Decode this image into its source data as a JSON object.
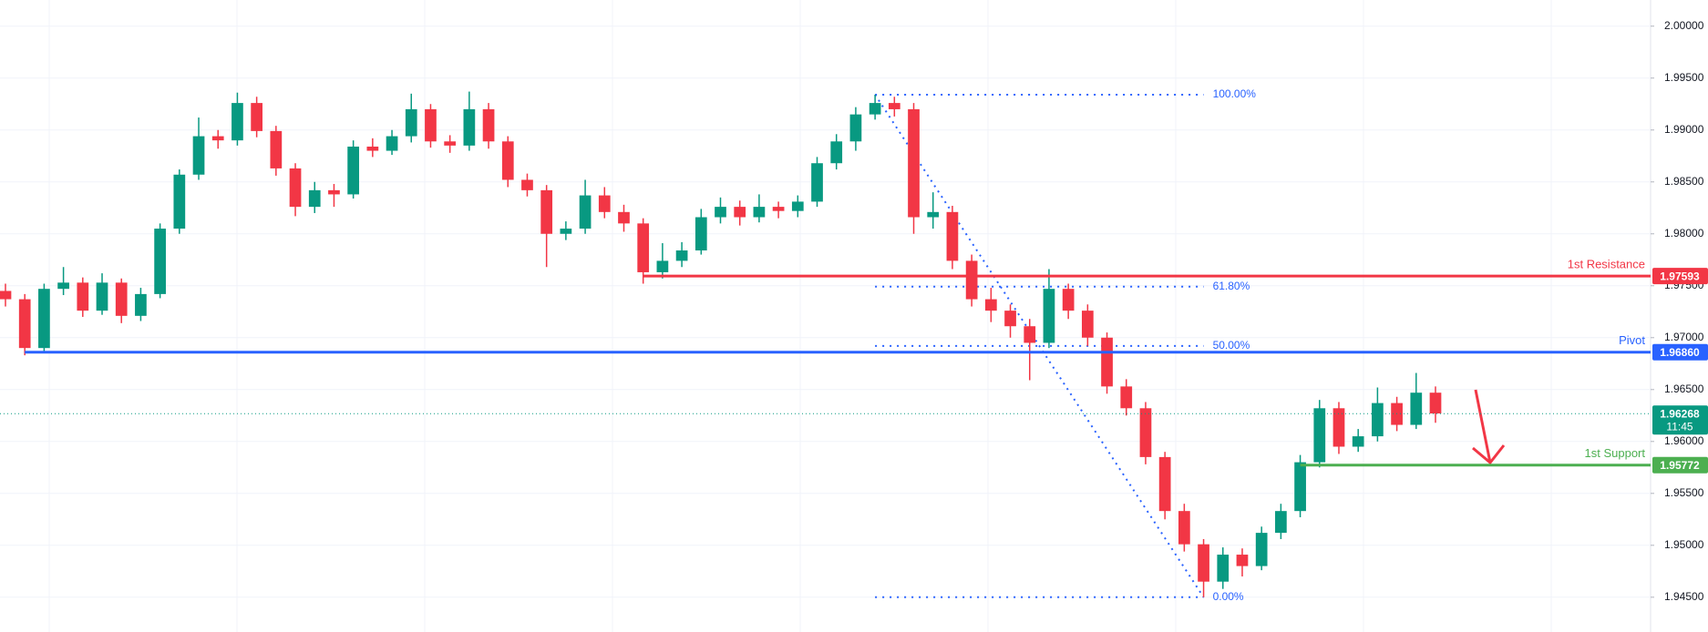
{
  "chart_data": {
    "type": "candlestick",
    "up_color": "#089981",
    "down_color": "#f23645",
    "open": [
      1.9745,
      1.9737,
      1.969,
      1.9747,
      1.9753,
      1.9726,
      1.9753,
      1.9721,
      1.9742,
      1.9805,
      1.9857,
      1.9894,
      1.989,
      1.9926,
      1.9899,
      1.9863,
      1.9826,
      1.9842,
      1.9838,
      1.9884,
      1.988,
      1.9894,
      1.992,
      1.9889,
      1.9885,
      1.992,
      1.9889,
      1.9852,
      1.9842,
      1.98,
      1.9805,
      1.9837,
      1.9821,
      1.981,
      1.9763,
      1.9774,
      1.9784,
      1.9816,
      1.9826,
      1.9816,
      1.9826,
      1.9822,
      1.9831,
      1.9868,
      1.9889,
      1.9915,
      1.9926,
      1.992,
      1.9816,
      1.9821,
      1.9774,
      1.9737,
      1.9726,
      1.9711,
      1.9695,
      1.9747,
      1.9726,
      1.97,
      1.9653,
      1.9632,
      1.9585,
      1.9533,
      1.9501,
      1.9465,
      1.9491,
      1.948,
      1.9512,
      1.9533,
      1.958,
      1.9632,
      1.9595,
      1.9605,
      1.9637,
      1.9616,
      1.9647
    ],
    "high": [
      1.9752,
      1.9742,
      1.9752,
      1.9768,
      1.9758,
      1.9762,
      1.9757,
      1.9748,
      1.981,
      1.9862,
      1.9912,
      1.99,
      1.9936,
      1.9932,
      1.9904,
      1.9868,
      1.985,
      1.9848,
      1.989,
      1.9892,
      1.99,
      1.9935,
      1.9925,
      1.9895,
      1.9937,
      1.9926,
      1.9894,
      1.9858,
      1.9847,
      1.9812,
      1.9852,
      1.9845,
      1.9828,
      1.9815,
      1.9791,
      1.9792,
      1.9824,
      1.9835,
      1.9832,
      1.9838,
      1.9831,
      1.9837,
      1.9874,
      1.9896,
      1.9922,
      1.9934,
      1.9932,
      1.9926,
      1.984,
      1.9827,
      1.978,
      1.9748,
      1.9732,
      1.9718,
      1.9766,
      1.9752,
      1.9732,
      1.9705,
      1.966,
      1.9638,
      1.959,
      1.954,
      1.9506,
      1.9498,
      1.9497,
      1.9518,
      1.954,
      1.9587,
      1.964,
      1.9638,
      1.9612,
      1.9652,
      1.9643,
      1.9666,
      1.9653
    ],
    "low": [
      1.973,
      1.9683,
      1.9686,
      1.9741,
      1.972,
      1.9722,
      1.9714,
      1.9716,
      1.9738,
      1.98,
      1.9852,
      1.9882,
      1.9885,
      1.9893,
      1.9856,
      1.9817,
      1.982,
      1.9826,
      1.9834,
      1.9874,
      1.9876,
      1.9888,
      1.9883,
      1.9878,
      1.988,
      1.9882,
      1.9845,
      1.9836,
      1.9768,
      1.9794,
      1.98,
      1.9815,
      1.9802,
      1.9752,
      1.9757,
      1.9768,
      1.978,
      1.981,
      1.9808,
      1.9811,
      1.9815,
      1.9816,
      1.9826,
      1.9862,
      1.988,
      1.991,
      1.9913,
      1.98,
      1.9805,
      1.9766,
      1.973,
      1.9715,
      1.97,
      1.9659,
      1.969,
      1.9718,
      1.9692,
      1.9646,
      1.9625,
      1.9578,
      1.9525,
      1.9494,
      1.945,
      1.9458,
      1.947,
      1.9476,
      1.9506,
      1.9527,
      1.9575,
      1.9588,
      1.959,
      1.96,
      1.961,
      1.9612,
      1.9618
    ],
    "close": [
      1.9737,
      1.969,
      1.9747,
      1.9753,
      1.9726,
      1.9753,
      1.9721,
      1.9742,
      1.9805,
      1.9857,
      1.9894,
      1.989,
      1.9926,
      1.9899,
      1.9863,
      1.9826,
      1.9842,
      1.9838,
      1.9884,
      1.988,
      1.9894,
      1.992,
      1.9889,
      1.9885,
      1.992,
      1.9889,
      1.9852,
      1.9842,
      1.98,
      1.9805,
      1.9837,
      1.9821,
      1.981,
      1.9763,
      1.9774,
      1.9784,
      1.9816,
      1.9826,
      1.9816,
      1.9826,
      1.9822,
      1.9831,
      1.9868,
      1.9889,
      1.9915,
      1.9926,
      1.992,
      1.9816,
      1.9821,
      1.9774,
      1.9737,
      1.9726,
      1.9711,
      1.9695,
      1.9747,
      1.9726,
      1.97,
      1.9653,
      1.9632,
      1.9585,
      1.9533,
      1.9501,
      1.9465,
      1.9491,
      1.948,
      1.9512,
      1.9533,
      1.958,
      1.9632,
      1.9595,
      1.9605,
      1.9637,
      1.9616,
      1.9647,
      1.9627
    ],
    "ylim": [
      1.94165,
      2.00252
    ],
    "yticks": [
      {
        "value": 1.945,
        "label": "1.94500"
      },
      {
        "value": 1.95,
        "label": "1.95000"
      },
      {
        "value": 1.955,
        "label": "1.95500"
      },
      {
        "value": 1.96,
        "label": "1.96000"
      },
      {
        "value": 1.965,
        "label": "1.96500"
      },
      {
        "value": 1.97,
        "label": "1.97000"
      },
      {
        "value": 1.975,
        "label": "1.97500"
      },
      {
        "value": 1.98,
        "label": "1.98000"
      },
      {
        "value": 1.985,
        "label": "1.98500"
      },
      {
        "value": 1.99,
        "label": "1.99000"
      },
      {
        "value": 1.995,
        "label": "1.99500"
      },
      {
        "value": 2.0,
        "label": "2.00000"
      }
    ],
    "grid": true,
    "levels": [
      {
        "name": "1st Resistance",
        "value": 1.97593,
        "color": "#f23645",
        "from": 33
      },
      {
        "name": "Pivot",
        "value": 1.9686,
        "value_label": "1.96860",
        "color": "#2962ff",
        "from": 1
      },
      {
        "name": "1st Support",
        "value": 1.95772,
        "color": "#4caf50",
        "from": 67
      }
    ],
    "last_price": {
      "value": 1.96268,
      "countdown": "11:45",
      "color": "#089981"
    },
    "fib": {
      "color": "#2962ff",
      "from": 45,
      "to": 62,
      "high": 1.9934,
      "low": 1.945,
      "levels": [
        {
          "value": 100,
          "label": "100.00%"
        },
        {
          "value": 61.8,
          "label": "61.80%"
        },
        {
          "value": 50,
          "label": "50.00%"
        },
        {
          "value": 0,
          "label": "0.00%"
        }
      ]
    }
  }
}
